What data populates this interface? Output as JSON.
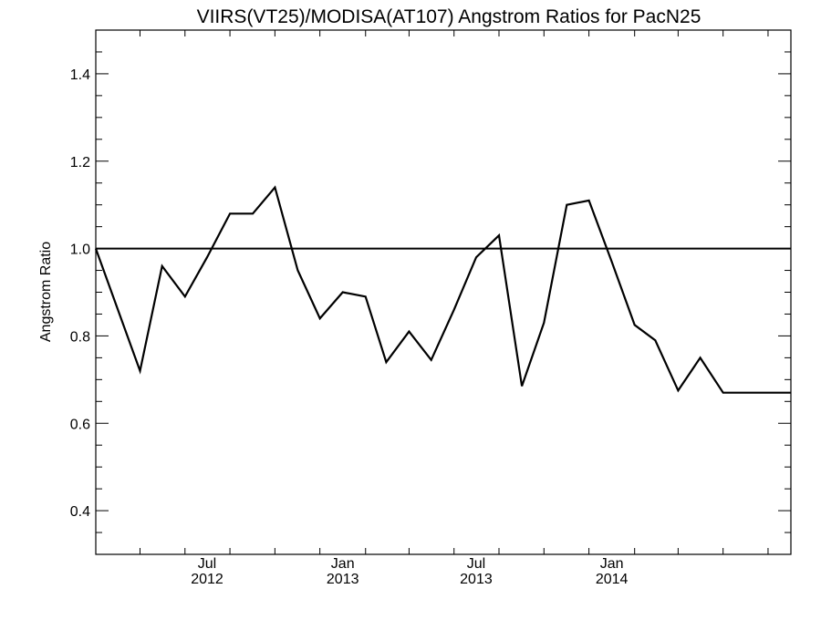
{
  "chart_data": {
    "type": "line",
    "title": "VIIRS(VT25)/MODISA(AT107)  Angstrom Ratios for PacN25",
    "xlabel": "",
    "ylabel": "Angstrom Ratio",
    "ylim": [
      0.3,
      1.5
    ],
    "xlim": [
      "2012-02-01",
      "2014-09-01"
    ],
    "grid": false,
    "reference_line": {
      "y": 1.0
    },
    "y_ticks": [
      0.4,
      0.6,
      0.8,
      1.0,
      1.2,
      1.4
    ],
    "y_tick_labels": [
      "0.4",
      "0.6",
      "0.8",
      "1.0",
      "1.2",
      "1.4"
    ],
    "x_major_ticks": [
      {
        "date": "2012-07-01",
        "month": "Jul",
        "year": "2012"
      },
      {
        "date": "2013-01-01",
        "month": "Jan",
        "year": "2013"
      },
      {
        "date": "2013-07-01",
        "month": "Jul",
        "year": "2013"
      },
      {
        "date": "2014-01-01",
        "month": "Jan",
        "year": "2014"
      }
    ],
    "x": [
      "2012-02-01",
      "2012-04-01",
      "2012-05-01",
      "2012-06-01",
      "2012-07-01",
      "2012-08-01",
      "2012-09-01",
      "2012-10-01",
      "2012-11-01",
      "2012-12-01",
      "2013-01-01",
      "2013-02-01",
      "2013-03-01",
      "2013-04-01",
      "2013-05-01",
      "2013-06-01",
      "2013-07-01",
      "2013-08-01",
      "2013-09-01",
      "2013-10-01",
      "2013-11-01",
      "2013-12-01",
      "2014-01-01",
      "2014-02-01",
      "2014-03-01",
      "2014-04-01",
      "2014-05-01",
      "2014-06-01",
      "2014-07-01",
      "2014-08-01",
      "2014-09-01"
    ],
    "series": [
      {
        "values": [
          1.0,
          0.72,
          0.96,
          0.89,
          0.98,
          1.08,
          1.08,
          1.14,
          0.95,
          0.84,
          0.9,
          0.89,
          0.74,
          0.81,
          0.745,
          0.86,
          0.98,
          1.03,
          0.685,
          0.83,
          1.1,
          1.11,
          0.97,
          0.825,
          0.79,
          0.675,
          0.75,
          0.67,
          0.67,
          0.67,
          0.67
        ],
        "color": "#000000"
      }
    ]
  }
}
